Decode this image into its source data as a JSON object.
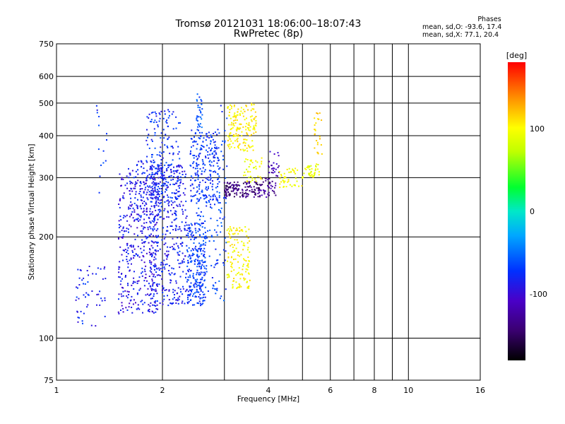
{
  "title": "Tromsø 20121031 18:06:00–18:07:43",
  "subtitle": "RwPretec (8p)",
  "phases": {
    "title": "Phases",
    "line_o": "mean, sd,O: -93.6, 17.4",
    "line_x": "mean, sd,X: 77.1, 20.4"
  },
  "chart_data": {
    "type": "scatter",
    "xlabel": "Frequency [MHz]",
    "ylabel": "Stationary phase Virtual Height [km]",
    "xscale": "log",
    "yscale": "log",
    "xlim": [
      1,
      16
    ],
    "ylim": [
      75,
      750
    ],
    "x_ticks": [
      1,
      2,
      4,
      6,
      8,
      10,
      16
    ],
    "x_grid": [
      2,
      3,
      4,
      5,
      6,
      7,
      8,
      9,
      10
    ],
    "y_ticks": [
      75,
      100,
      200,
      300,
      400,
      500,
      600,
      750
    ],
    "y_grid": [
      100,
      200,
      300,
      400,
      500,
      600
    ],
    "grid": true,
    "colorbar": {
      "label": "[deg]",
      "range": [
        -180,
        180
      ],
      "ticks": [
        100,
        0,
        -100
      ]
    },
    "clusters": [
      {
        "phase": -105,
        "f": [
          1.5,
          1.95
        ],
        "h": [
          118,
          320
        ],
        "n": 420
      },
      {
        "phase": -100,
        "f": [
          1.85,
          2.35
        ],
        "h": [
          125,
          330
        ],
        "n": 380
      },
      {
        "phase": -98,
        "f": [
          1.65,
          2.0
        ],
        "h": [
          220,
          340
        ],
        "n": 110
      },
      {
        "phase": -92,
        "f": [
          1.8,
          2.25
        ],
        "h": [
          255,
          480
        ],
        "n": 170
      },
      {
        "phase": -88,
        "f": [
          2.35,
          2.65
        ],
        "h": [
          125,
          220
        ],
        "n": 230
      },
      {
        "phase": -90,
        "f": [
          2.4,
          2.9
        ],
        "h": [
          255,
          420
        ],
        "n": 230
      },
      {
        "phase": -85,
        "f": [
          2.5,
          2.9
        ],
        "h": [
          135,
          260
        ],
        "n": 90
      },
      {
        "phase": -80,
        "f": [
          2.5,
          2.6
        ],
        "h": [
          420,
          540
        ],
        "n": 30
      },
      {
        "phase": -85,
        "f": [
          2.9,
          3.05
        ],
        "h": [
          125,
          520
        ],
        "n": 45
      },
      {
        "phase": -145,
        "f": [
          3.0,
          3.8
        ],
        "h": [
          262,
          292
        ],
        "n": 140
      },
      {
        "phase": -135,
        "f": [
          3.8,
          4.2
        ],
        "h": [
          262,
          300
        ],
        "n": 40
      },
      {
        "phase": -125,
        "f": [
          4.0,
          4.3
        ],
        "h": [
          300,
          360
        ],
        "n": 25
      },
      {
        "phase": 92,
        "f": [
          3.05,
          3.55
        ],
        "h": [
          140,
          215
        ],
        "n": 130
      },
      {
        "phase": 95,
        "f": [
          3.05,
          3.7
        ],
        "h": [
          360,
          500
        ],
        "n": 160
      },
      {
        "phase": 85,
        "f": [
          3.4,
          3.85
        ],
        "h": [
          290,
          345
        ],
        "n": 40
      },
      {
        "phase": 88,
        "f": [
          4.3,
          5.0
        ],
        "h": [
          280,
          320
        ],
        "n": 45
      },
      {
        "phase": 80,
        "f": [
          5.0,
          5.6
        ],
        "h": [
          300,
          330
        ],
        "n": 40
      },
      {
        "phase": 105,
        "f": [
          5.4,
          5.7
        ],
        "h": [
          350,
          480
        ],
        "n": 25
      },
      {
        "phase": -98,
        "f": [
          1.12,
          1.38
        ],
        "h": [
          108,
          165
        ],
        "n": 55
      },
      {
        "phase": -92,
        "f": [
          1.3,
          1.4
        ],
        "h": [
          270,
          540
        ],
        "n": 14
      }
    ]
  }
}
